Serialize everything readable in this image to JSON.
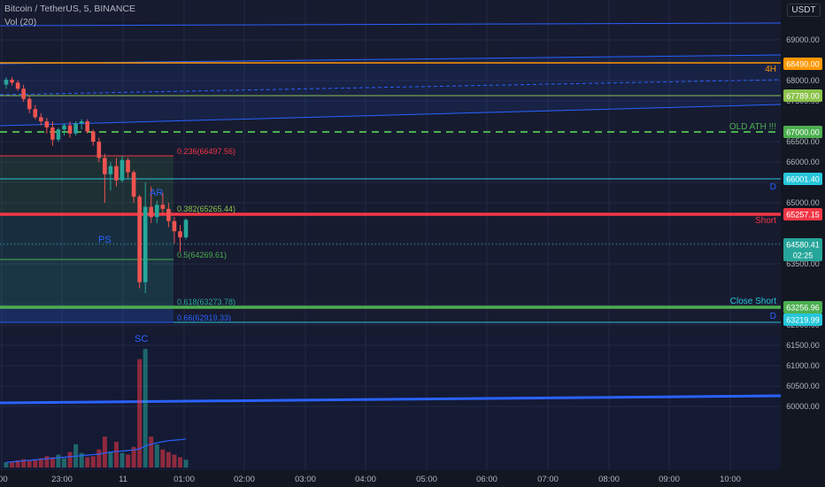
{
  "header": {
    "symbol_line": "Bitcoin / TetherUS, 5, BINANCE",
    "volume_label": "Vol (20)",
    "currency": "USDT"
  },
  "price_axis": {
    "ticks": [
      "69000.00",
      "68000.00",
      "67500.00",
      "66500.00",
      "66000.00",
      "65500.00",
      "65000.00",
      "64000.00",
      "63500.00",
      "62500.00",
      "62000.00",
      "61500.00",
      "61000.00",
      "60500.00",
      "60000.00"
    ]
  },
  "time_axis": {
    "ticks": [
      ":00",
      "23:00",
      "11",
      "01:00",
      "02:00",
      "03:00",
      "04:00",
      "05:00",
      "06:00",
      "07:00",
      "08:00",
      "09:00",
      "10:00"
    ]
  },
  "price_tags": [
    {
      "text": "68490.00",
      "color": "#ff9800"
    },
    {
      "text": "67789.00",
      "color": "#8bc34a"
    },
    {
      "text": "67000.00",
      "color": "#4caf50"
    },
    {
      "text": "66001.40",
      "color": "#26c6da"
    },
    {
      "text": "65257.15",
      "color": "#f23645"
    },
    {
      "text": "64580.41",
      "color": "#26a69a"
    },
    {
      "text": "02:25",
      "color": "#26a69a"
    },
    {
      "text": "63256.96",
      "color": "#4caf50"
    },
    {
      "text": "63219.99",
      "color": "#26c6da"
    }
  ],
  "line_labels": [
    {
      "text": "4H",
      "color": "#ff9800"
    },
    {
      "text": "OLD ATH !!!",
      "color": "#4caf50"
    },
    {
      "text": "D",
      "color": "#2962ff"
    },
    {
      "text": "Short",
      "color": "#f23645"
    },
    {
      "text": "Close Short",
      "color": "#26c6da"
    },
    {
      "text": "D",
      "color": "#2962ff"
    }
  ],
  "fib_labels": [
    {
      "text": "0.236(66497.56)",
      "color": "#f23645"
    },
    {
      "text": "0.382(65265.44)",
      "color": "#8bc34a"
    },
    {
      "text": "0.5(64269.61)",
      "color": "#4caf50"
    },
    {
      "text": "0.618(63273.78)",
      "color": "#26a69a"
    },
    {
      "text": "0.66(62919.33)",
      "color": "#2962ff"
    }
  ],
  "annotations": [
    {
      "text": "PS",
      "color": "#2962ff"
    },
    {
      "text": "AR",
      "color": "#2962ff"
    },
    {
      "text": "SC",
      "color": "#2962ff"
    }
  ],
  "chart_data": {
    "type": "candlestick",
    "symbol": "Bitcoin / TetherUS, 5, BINANCE",
    "ylim": [
      59850,
      69550
    ],
    "x_tick_labels": [
      ":00",
      "23:00",
      "11",
      "01:00",
      "02:00",
      "03:00",
      "04:00",
      "05:00",
      "06:00",
      "07:00",
      "08:00",
      "09:00",
      "10:00"
    ],
    "candles": [
      {
        "o": 67900,
        "h": 68080,
        "l": 67800,
        "c": 68020
      },
      {
        "o": 68020,
        "h": 68090,
        "l": 67880,
        "c": 67950
      },
      {
        "o": 67950,
        "h": 68000,
        "l": 67750,
        "c": 67800
      },
      {
        "o": 67800,
        "h": 67900,
        "l": 67480,
        "c": 67550
      },
      {
        "o": 67550,
        "h": 67620,
        "l": 67200,
        "c": 67300
      },
      {
        "o": 67300,
        "h": 67400,
        "l": 67050,
        "c": 67100
      },
      {
        "o": 67100,
        "h": 67200,
        "l": 66900,
        "c": 67000
      },
      {
        "o": 67000,
        "h": 67080,
        "l": 66700,
        "c": 66850
      },
      {
        "o": 66850,
        "h": 67000,
        "l": 66400,
        "c": 66550
      },
      {
        "o": 66550,
        "h": 66850,
        "l": 66500,
        "c": 66800
      },
      {
        "o": 66800,
        "h": 66950,
        "l": 66650,
        "c": 66900
      },
      {
        "o": 66900,
        "h": 67000,
        "l": 66600,
        "c": 66700
      },
      {
        "o": 66700,
        "h": 67000,
        "l": 66650,
        "c": 66950
      },
      {
        "o": 66950,
        "h": 67050,
        "l": 66800,
        "c": 67000
      },
      {
        "o": 67000,
        "h": 67050,
        "l": 66700,
        "c": 66750
      },
      {
        "o": 66750,
        "h": 66800,
        "l": 66400,
        "c": 66500
      },
      {
        "o": 66500,
        "h": 66600,
        "l": 66000,
        "c": 66100
      },
      {
        "o": 66100,
        "h": 66200,
        "l": 65000,
        "c": 65700
      },
      {
        "o": 65700,
        "h": 66000,
        "l": 65300,
        "c": 65900
      },
      {
        "o": 65900,
        "h": 66100,
        "l": 65400,
        "c": 65550
      },
      {
        "o": 65550,
        "h": 66150,
        "l": 65500,
        "c": 66050
      },
      {
        "o": 66050,
        "h": 66100,
        "l": 65600,
        "c": 65750
      },
      {
        "o": 65750,
        "h": 65800,
        "l": 65000,
        "c": 65150
      },
      {
        "o": 65150,
        "h": 65200,
        "l": 62900,
        "c": 63050
      },
      {
        "o": 63050,
        "h": 65500,
        "l": 62780,
        "c": 64900
      },
      {
        "o": 64900,
        "h": 65400,
        "l": 64500,
        "c": 64650
      },
      {
        "o": 64650,
        "h": 65050,
        "l": 64500,
        "c": 64950
      },
      {
        "o": 64950,
        "h": 65250,
        "l": 64700,
        "c": 64850
      },
      {
        "o": 64850,
        "h": 65000,
        "l": 64400,
        "c": 64550
      },
      {
        "o": 64550,
        "h": 64650,
        "l": 64000,
        "c": 64300
      },
      {
        "o": 64300,
        "h": 64450,
        "l": 63800,
        "c": 64150
      },
      {
        "o": 64150,
        "h": 64620,
        "l": 64100,
        "c": 64580
      }
    ],
    "volume": [
      10,
      12,
      14,
      16,
      13,
      15,
      18,
      22,
      20,
      25,
      18,
      30,
      45,
      28,
      20,
      22,
      35,
      60,
      30,
      50,
      28,
      25,
      40,
      210,
      230,
      60,
      45,
      35,
      30,
      25,
      20,
      15
    ],
    "volume_ma": [
      10,
      11,
      12,
      13,
      14,
      15,
      16,
      17,
      18,
      19,
      20,
      21,
      22,
      23,
      24,
      25,
      26,
      28,
      30,
      31,
      32,
      33,
      34,
      36,
      42,
      45,
      48,
      50,
      52,
      53,
      54,
      55
    ]
  }
}
